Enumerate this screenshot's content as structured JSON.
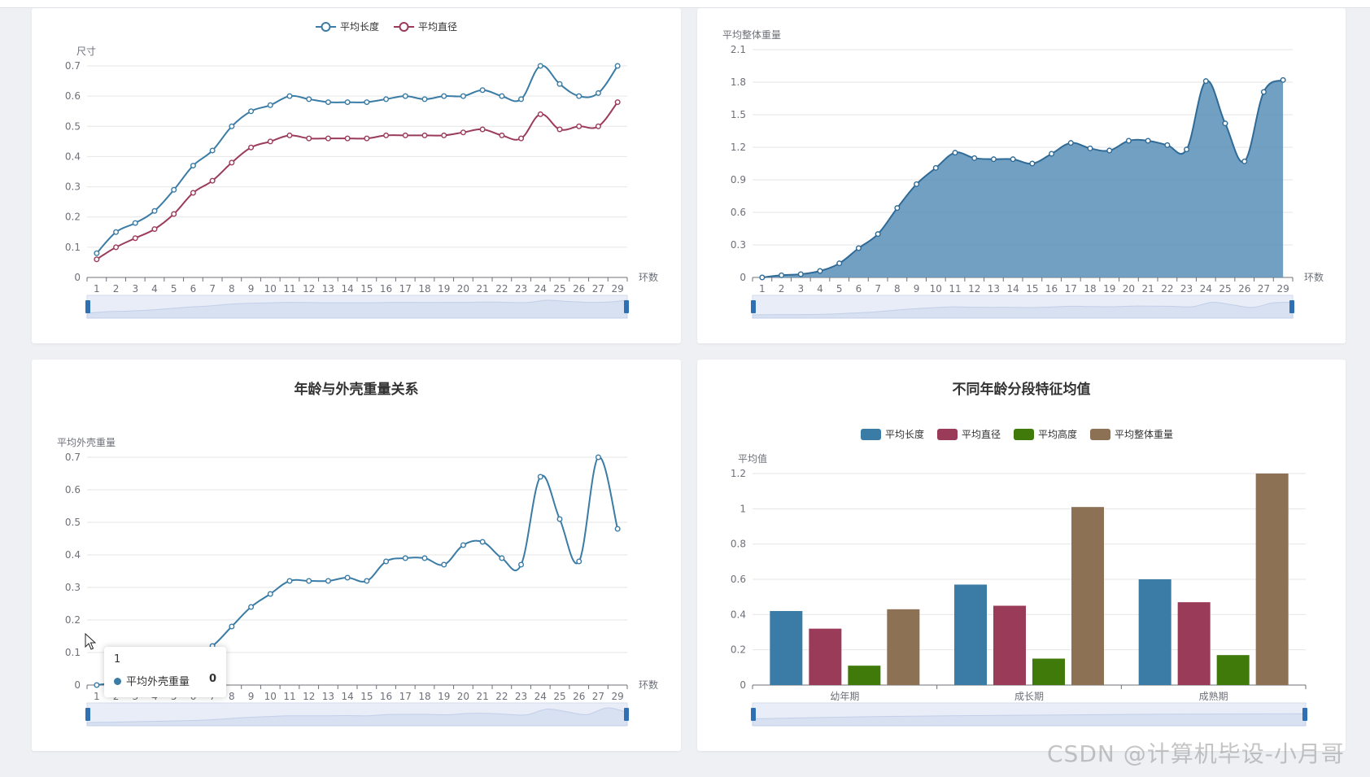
{
  "colors": {
    "blue": "#3a7ca5",
    "maroon": "#9b3b5a",
    "green": "#3f7a0a",
    "brown": "#8c7154",
    "area_fill": "#5f93ba",
    "grid": "#e6e6e6",
    "axis": "#6e7079"
  },
  "charts": {
    "size": {
      "ylabel": "尺寸",
      "xlabel": "环数",
      "legend": [
        "平均长度",
        "平均直径"
      ]
    },
    "weight": {
      "ylabel": "平均整体重量",
      "xlabel": "环数"
    },
    "shell": {
      "title": "年龄与外壳重量关系",
      "ylabel": "平均外壳重量",
      "xlabel": "环数"
    },
    "group": {
      "title": "不同年龄分段特征均值",
      "ylabel": "平均值",
      "legend": [
        "平均长度",
        "平均直径",
        "平均高度",
        "平均整体重量"
      ]
    }
  },
  "tooltip": {
    "title": "1",
    "series": "平均外壳重量",
    "value": "0"
  },
  "watermark": "CSDN @计算机毕设-小月哥",
  "icons": {
    "cursor": "mouse-pointer-icon",
    "legend_line": "line-circle-legend-icon",
    "legend_bar": "rounded-rect-legend-icon",
    "zoom_handle": "zoom-handle-icon"
  },
  "chart_data": [
    {
      "type": "line",
      "ylabel": "尺寸",
      "xlabel": "环数",
      "ylim": [
        0,
        0.7
      ],
      "yticks": [
        0,
        0.1,
        0.2,
        0.3,
        0.4,
        0.5,
        0.6,
        0.7
      ],
      "x": [
        1,
        2,
        3,
        4,
        5,
        6,
        7,
        8,
        9,
        10,
        11,
        12,
        13,
        14,
        15,
        16,
        17,
        18,
        19,
        20,
        21,
        22,
        23,
        24,
        25,
        26,
        27,
        29
      ],
      "series": [
        {
          "name": "平均长度",
          "values": [
            0.08,
            0.15,
            0.18,
            0.22,
            0.29,
            0.37,
            0.42,
            0.5,
            0.55,
            0.57,
            0.6,
            0.59,
            0.58,
            0.58,
            0.58,
            0.59,
            0.6,
            0.59,
            0.6,
            0.6,
            0.62,
            0.6,
            0.59,
            0.7,
            0.64,
            0.6,
            0.61,
            0.7
          ]
        },
        {
          "name": "平均直径",
          "values": [
            0.06,
            0.1,
            0.13,
            0.16,
            0.21,
            0.28,
            0.32,
            0.38,
            0.43,
            0.45,
            0.47,
            0.46,
            0.46,
            0.46,
            0.46,
            0.47,
            0.47,
            0.47,
            0.47,
            0.48,
            0.49,
            0.47,
            0.46,
            0.54,
            0.49,
            0.5,
            0.5,
            0.58
          ]
        }
      ],
      "legend": "top-center",
      "grid": true,
      "datazoom": true
    },
    {
      "type": "area",
      "ylabel": "平均整体重量",
      "xlabel": "环数",
      "ylim": [
        0,
        2.1
      ],
      "yticks": [
        0,
        0.3,
        0.6,
        0.9,
        1.2,
        1.5,
        1.8,
        2.1
      ],
      "x": [
        1,
        2,
        3,
        4,
        5,
        6,
        7,
        8,
        9,
        10,
        11,
        12,
        13,
        14,
        15,
        16,
        17,
        18,
        19,
        20,
        21,
        22,
        23,
        24,
        25,
        26,
        27,
        29
      ],
      "series": [
        {
          "values": [
            0.0,
            0.02,
            0.03,
            0.06,
            0.13,
            0.27,
            0.4,
            0.64,
            0.86,
            1.01,
            1.15,
            1.1,
            1.09,
            1.09,
            1.05,
            1.14,
            1.24,
            1.19,
            1.17,
            1.26,
            1.26,
            1.22,
            1.18,
            1.81,
            1.42,
            1.07,
            1.71,
            1.82
          ]
        }
      ],
      "grid": true,
      "datazoom": true
    },
    {
      "type": "line",
      "title": "年龄与外壳重量关系",
      "ylabel": "平均外壳重量",
      "xlabel": "环数",
      "ylim": [
        0,
        0.7
      ],
      "yticks": [
        0,
        0.1,
        0.2,
        0.3,
        0.4,
        0.5,
        0.6,
        0.7
      ],
      "x": [
        1,
        2,
        3,
        4,
        5,
        6,
        7,
        8,
        9,
        10,
        11,
        12,
        13,
        14,
        15,
        16,
        17,
        18,
        19,
        20,
        21,
        22,
        23,
        24,
        25,
        26,
        27,
        29
      ],
      "series": [
        {
          "name": "平均外壳重量",
          "values": [
            0,
            0.01,
            0.03,
            0.05,
            0.07,
            0.09,
            0.12,
            0.18,
            0.24,
            0.28,
            0.32,
            0.32,
            0.32,
            0.33,
            0.32,
            0.38,
            0.39,
            0.39,
            0.37,
            0.43,
            0.44,
            0.39,
            0.37,
            0.64,
            0.51,
            0.38,
            0.7,
            0.48
          ]
        }
      ],
      "grid": true,
      "datazoom": true
    },
    {
      "type": "bar",
      "title": "不同年龄分段特征均值",
      "ylabel": "平均值",
      "ylim": [
        0,
        1.2
      ],
      "yticks": [
        0,
        0.2,
        0.4,
        0.6,
        0.8,
        1,
        1.2
      ],
      "categories": [
        "幼年期",
        "成长期",
        "成熟期"
      ],
      "series": [
        {
          "name": "平均长度",
          "values": [
            0.42,
            0.57,
            0.6
          ]
        },
        {
          "name": "平均直径",
          "values": [
            0.32,
            0.45,
            0.47
          ]
        },
        {
          "name": "平均高度",
          "values": [
            0.11,
            0.15,
            0.17
          ]
        },
        {
          "name": "平均整体重量",
          "values": [
            0.43,
            1.01,
            1.2
          ]
        }
      ],
      "legend": "top-center",
      "grid": true,
      "datazoom": true
    }
  ]
}
